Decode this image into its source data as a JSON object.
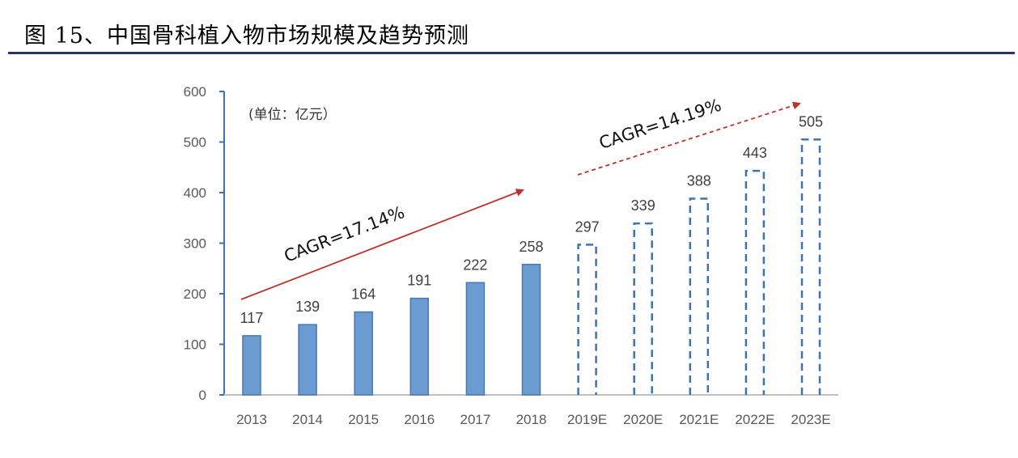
{
  "title": "图 15、中国骨科植入物市场规模及趋势预测",
  "chart_data": {
    "type": "bar",
    "title": "",
    "unit_label": "(单位：亿元）",
    "categories": [
      "2013",
      "2014",
      "2015",
      "2016",
      "2017",
      "2018",
      "2019E",
      "2020E",
      "2021E",
      "2022E",
      "2023E"
    ],
    "values": [
      117,
      139,
      164,
      191,
      222,
      258,
      297,
      339,
      388,
      443,
      505
    ],
    "forecast": [
      false,
      false,
      false,
      false,
      false,
      false,
      true,
      true,
      true,
      true,
      true
    ],
    "ylim": [
      0,
      600
    ],
    "yticks": [
      0,
      100,
      200,
      300,
      400,
      500,
      600
    ],
    "grid": false,
    "legend": "none",
    "annotations": [
      {
        "text": "CAGR=17.14%",
        "from": "2013",
        "to": "2018",
        "style": "solid"
      },
      {
        "text": "CAGR=14.19%",
        "from": "2019E",
        "to": "2023E",
        "style": "dashed"
      }
    ],
    "colors": {
      "bar_fill": "#6a9bd1",
      "bar_edge": "#4a78b0",
      "forecast_edge": "#3f72b0",
      "arrow": "#c0312b",
      "axis": "#3f72b0",
      "baseline": "#bfbfbf"
    }
  }
}
